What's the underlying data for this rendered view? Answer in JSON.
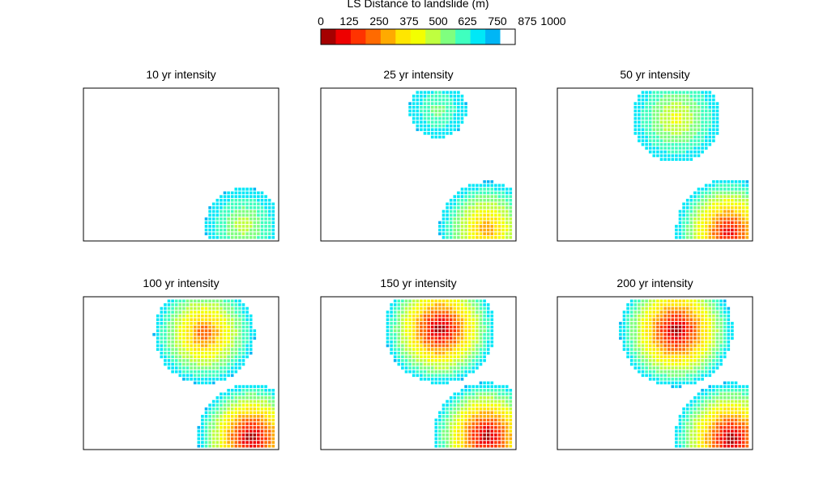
{
  "colorbar": {
    "title": "LS Distance to landslide (m)",
    "tick_labels": [
      "0",
      "125",
      "250",
      "375",
      "500",
      "625",
      "750",
      "875",
      "1000"
    ],
    "colors": [
      "#a50000",
      "#ee0000",
      "#ff3300",
      "#ff6a00",
      "#ffaa00",
      "#ffe600",
      "#f3ff00",
      "#bfff3f",
      "#7fff7f",
      "#3fffbf",
      "#00e8f7",
      "#00b6f5",
      "#ffffff"
    ]
  },
  "chart_data": [
    {
      "type": "heatmap",
      "title": "10 yr intensity",
      "legend": "colorbar top-center",
      "grid": false,
      "clusters": [
        {
          "location": "lower-right",
          "center": [
            0.82,
            0.1
          ],
          "radius": 0.25,
          "min_distance_m": 550
        }
      ]
    },
    {
      "type": "heatmap",
      "title": "25 yr intensity",
      "grid": false,
      "clusters": [
        {
          "location": "top-center",
          "center": [
            0.6,
            0.86
          ],
          "radius": 0.19,
          "min_distance_m": 650
        },
        {
          "location": "lower-right",
          "center": [
            0.85,
            0.08
          ],
          "radius": 0.31,
          "min_distance_m": 300
        }
      ]
    },
    {
      "type": "heatmap",
      "title": "50 yr intensity",
      "grid": false,
      "clusters": [
        {
          "location": "top-center",
          "center": [
            0.61,
            0.8
          ],
          "radius": 0.29,
          "min_distance_m": 480
        },
        {
          "location": "lower-right",
          "center": [
            0.88,
            0.06
          ],
          "radius": 0.35,
          "min_distance_m": 80
        }
      ]
    },
    {
      "type": "heatmap",
      "title": "100 yr intensity",
      "grid": false,
      "clusters": [
        {
          "location": "top-center",
          "center": [
            0.62,
            0.76
          ],
          "radius": 0.33,
          "min_distance_m": 220
        },
        {
          "location": "lower-right",
          "center": [
            0.86,
            0.08
          ],
          "radius": 0.35,
          "min_distance_m": 0
        }
      ]
    },
    {
      "type": "heatmap",
      "title": "150 yr intensity",
      "grid": false,
      "clusters": [
        {
          "location": "top-center",
          "center": [
            0.61,
            0.79
          ],
          "radius": 0.36,
          "min_distance_m": 0
        },
        {
          "location": "lower-right",
          "center": [
            0.85,
            0.09
          ],
          "radius": 0.35,
          "min_distance_m": 0
        }
      ]
    },
    {
      "type": "heatmap",
      "title": "200 yr intensity",
      "grid": false,
      "clusters": [
        {
          "location": "top-center",
          "center": [
            0.61,
            0.78
          ],
          "radius": 0.37,
          "min_distance_m": 0
        },
        {
          "location": "lower-right",
          "center": [
            0.89,
            0.07
          ],
          "radius": 0.37,
          "min_distance_m": 0
        }
      ]
    }
  ]
}
